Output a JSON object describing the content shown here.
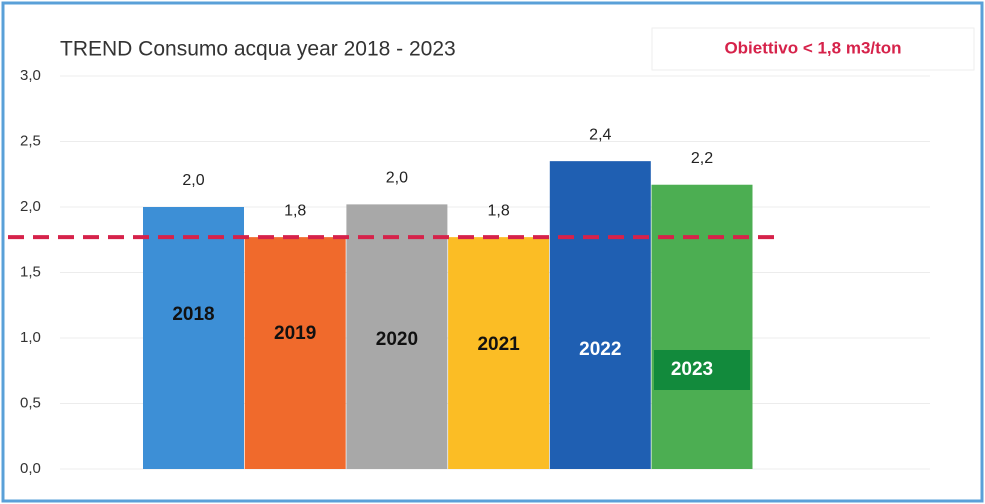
{
  "chart_data": {
    "type": "bar",
    "title": "TREND Consumo acqua year 2018 - 2023",
    "annotation": "Obiettivo < 1,8 m3/ton",
    "categories": [
      "2018",
      "2019",
      "2020",
      "2021",
      "2022",
      "2023"
    ],
    "values": [
      2.0,
      1.77,
      2.02,
      1.77,
      2.35,
      2.17
    ],
    "value_labels": [
      "2,0",
      "1,8",
      "2,0",
      "1,8",
      "2,4",
      "2,2"
    ],
    "colors": [
      "#3d8fd6",
      "#f06a2c",
      "#a8a8a8",
      "#fbbd25",
      "#1f5fb2",
      "#4cae52"
    ],
    "target": 1.77,
    "target_color": "#d6224a",
    "ylim": [
      0,
      3
    ],
    "yticks": [
      {
        "value": 0,
        "label": "0,0"
      },
      {
        "value": 0.5,
        "label": "0,5"
      },
      {
        "value": 1,
        "label": "1,0"
      },
      {
        "value": 1.5,
        "label": "1,5"
      },
      {
        "value": 2,
        "label": "2,0"
      },
      {
        "value": 2.5,
        "label": "2,5"
      },
      {
        "value": 3,
        "label": "3,0"
      }
    ],
    "grid": true
  }
}
